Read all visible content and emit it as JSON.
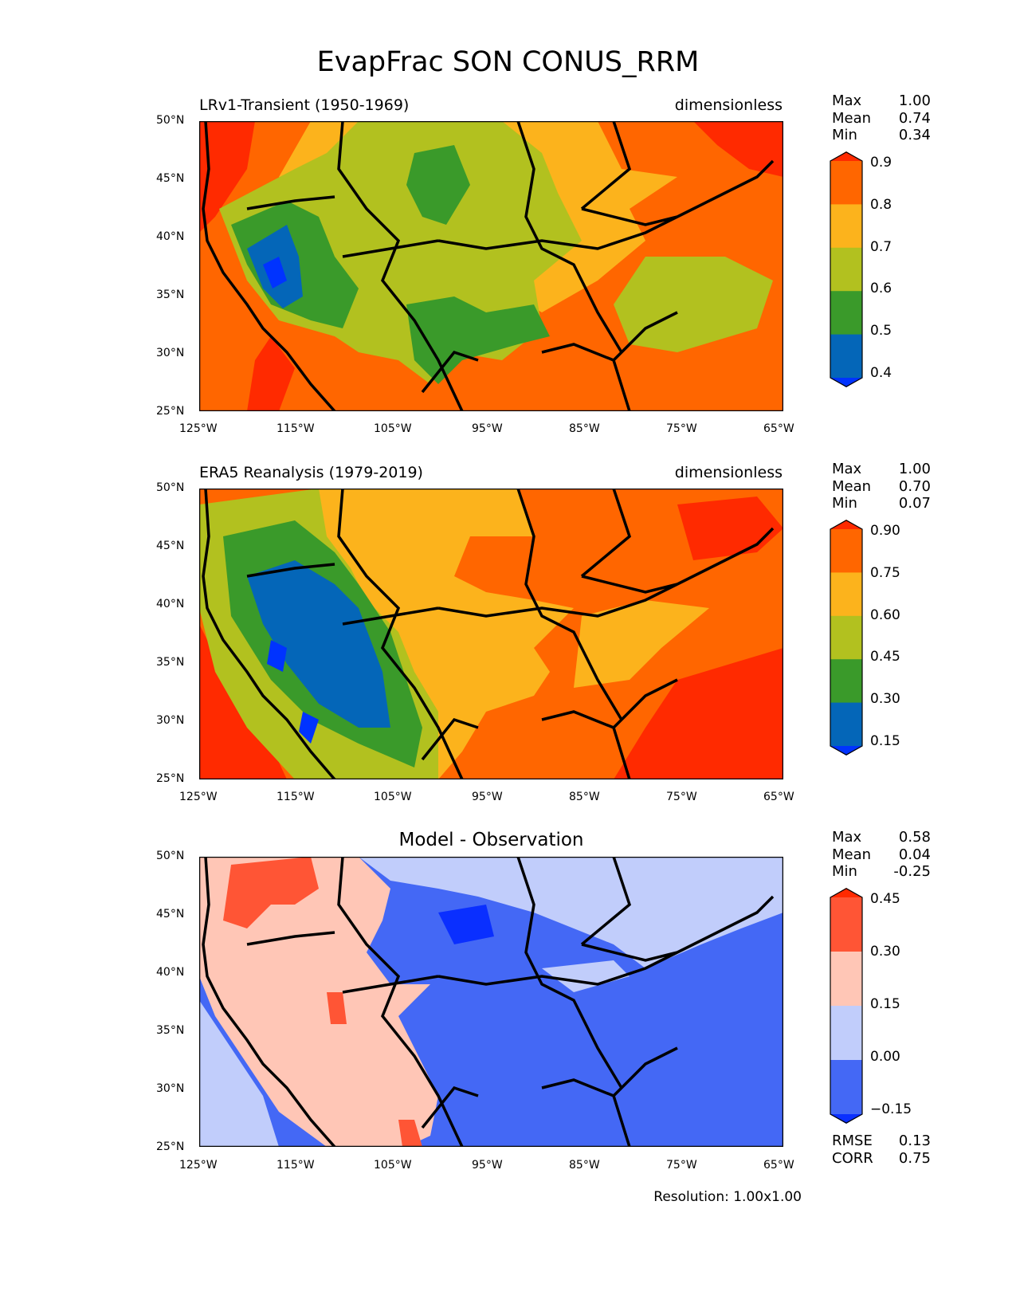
{
  "figure": {
    "title": "EvapFrac SON CONUS_RRM",
    "resolution_label": "Resolution: 1.00x1.00"
  },
  "axes": {
    "lat_labels": [
      "50°N",
      "45°N",
      "40°N",
      "35°N",
      "30°N",
      "25°N"
    ],
    "lon_labels": [
      "125°W",
      "115°W",
      "105°W",
      "95°W",
      "85°W",
      "75°W",
      "65°W"
    ],
    "lat_range": [
      25,
      50
    ],
    "lon_range": [
      -125,
      -65
    ]
  },
  "panels": [
    {
      "id": "test",
      "title": "LRv1-Transient (1950-1969)",
      "units": "dimensionless",
      "stats": {
        "max_label": "Max",
        "max": "1.00",
        "mean_label": "Mean",
        "mean": "0.74",
        "min_label": "Min",
        "min": "0.34"
      },
      "colorbar": {
        "ticks": [
          "0.9",
          "0.8",
          "0.7",
          "0.6",
          "0.5",
          "0.4"
        ],
        "colors": [
          "#ff6600",
          "#fcb31c",
          "#b2c11f",
          "#3a9a2a",
          "#0466b8"
        ],
        "over_color": "#ff2a00",
        "under_color": "#0033ff"
      }
    },
    {
      "id": "ref",
      "title": "ERA5 Reanalysis (1979-2019)",
      "units": "dimensionless",
      "stats": {
        "max_label": "Max",
        "max": "1.00",
        "mean_label": "Mean",
        "mean": "0.70",
        "min_label": "Min",
        "min": "0.07"
      },
      "colorbar": {
        "ticks": [
          "0.90",
          "0.75",
          "0.60",
          "0.45",
          "0.30",
          "0.15"
        ],
        "colors": [
          "#ff6600",
          "#fcb31c",
          "#b2c11f",
          "#3a9a2a",
          "#0466b8"
        ],
        "over_color": "#ff2a00",
        "under_color": "#0033ff"
      }
    },
    {
      "id": "diff",
      "center_title": "Model - Observation",
      "stats": {
        "max_label": "Max",
        "max": "0.58",
        "mean_label": "Mean",
        "mean": "0.04",
        "min_label": "Min",
        "min": "-0.25"
      },
      "metrics": {
        "rmse_label": "RMSE",
        "rmse": "0.13",
        "corr_label": "CORR",
        "corr": "0.75"
      },
      "colorbar": {
        "ticks": [
          "0.45",
          "0.30",
          "0.15",
          "0.00",
          "−0.15"
        ],
        "colors": [
          "#ff5535",
          "#ffc6b6",
          "#c1cdfb",
          "#4468f5"
        ],
        "over_color": "#ff2a00",
        "under_color": "#0a2fff"
      }
    }
  ]
}
